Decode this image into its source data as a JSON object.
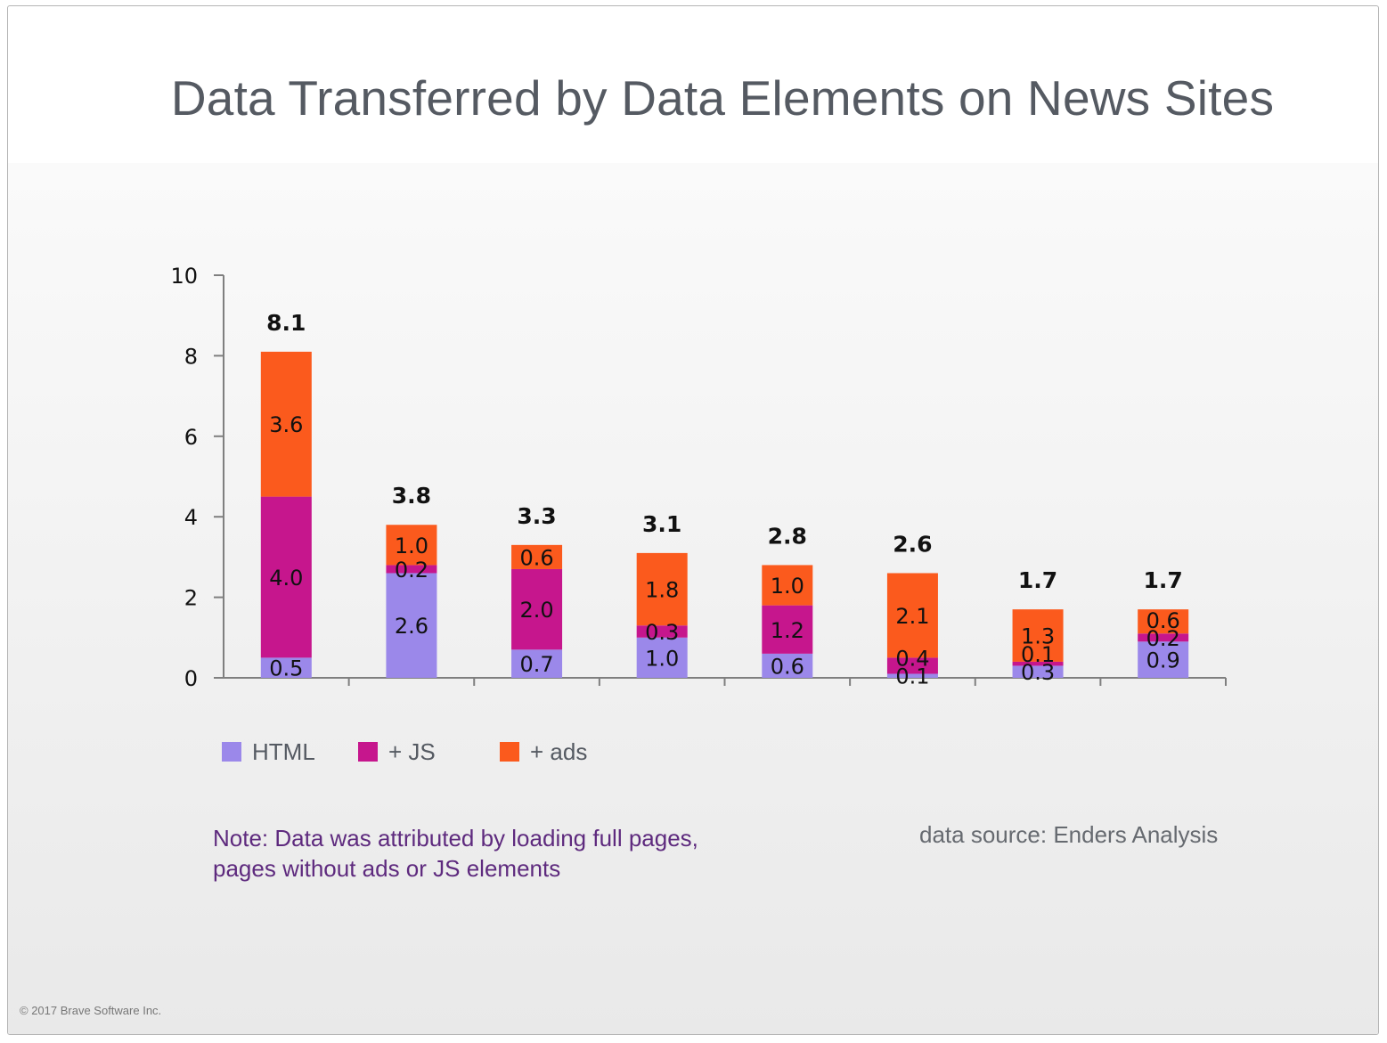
{
  "title": "Data Transferred by Data Elements on News Sites",
  "note": "Note: Data was attributed by loading full pages, pages without ads or JS elements",
  "source": "data source: Enders Analysis",
  "copyright": "© 2017 Brave Software Inc.",
  "legend": [
    {
      "label": "HTML",
      "color": "#9b88ea"
    },
    {
      "label": "+ JS",
      "color": "#c6168d"
    },
    {
      "label": "+ ads",
      "color": "#fb5a1d"
    }
  ],
  "chart_data": {
    "type": "bar",
    "stacked": true,
    "title": "Data Transferred by Data Elements on News Sites",
    "xlabel": "",
    "ylabel": "",
    "ylim": [
      0,
      10
    ],
    "yticks": [
      0,
      2,
      4,
      6,
      8,
      10
    ],
    "legend_position": "bottom-left",
    "categories": [
      "",
      "",
      "",
      "",
      "",
      "",
      "",
      ""
    ],
    "series": [
      {
        "name": "HTML",
        "color": "#9b88ea",
        "values": [
          0.5,
          2.6,
          0.7,
          1.0,
          0.6,
          0.1,
          0.3,
          0.9
        ]
      },
      {
        "name": "+ JS",
        "color": "#c6168d",
        "values": [
          4.0,
          0.2,
          2.0,
          0.3,
          1.2,
          0.4,
          0.1,
          0.2
        ]
      },
      {
        "name": "+ ads",
        "color": "#fb5a1d",
        "values": [
          3.6,
          1.0,
          0.6,
          1.8,
          1.0,
          2.1,
          1.3,
          0.6
        ]
      }
    ],
    "totals": [
      8.1,
      3.8,
      3.3,
      3.1,
      2.8,
      2.6,
      1.7,
      1.7
    ]
  }
}
